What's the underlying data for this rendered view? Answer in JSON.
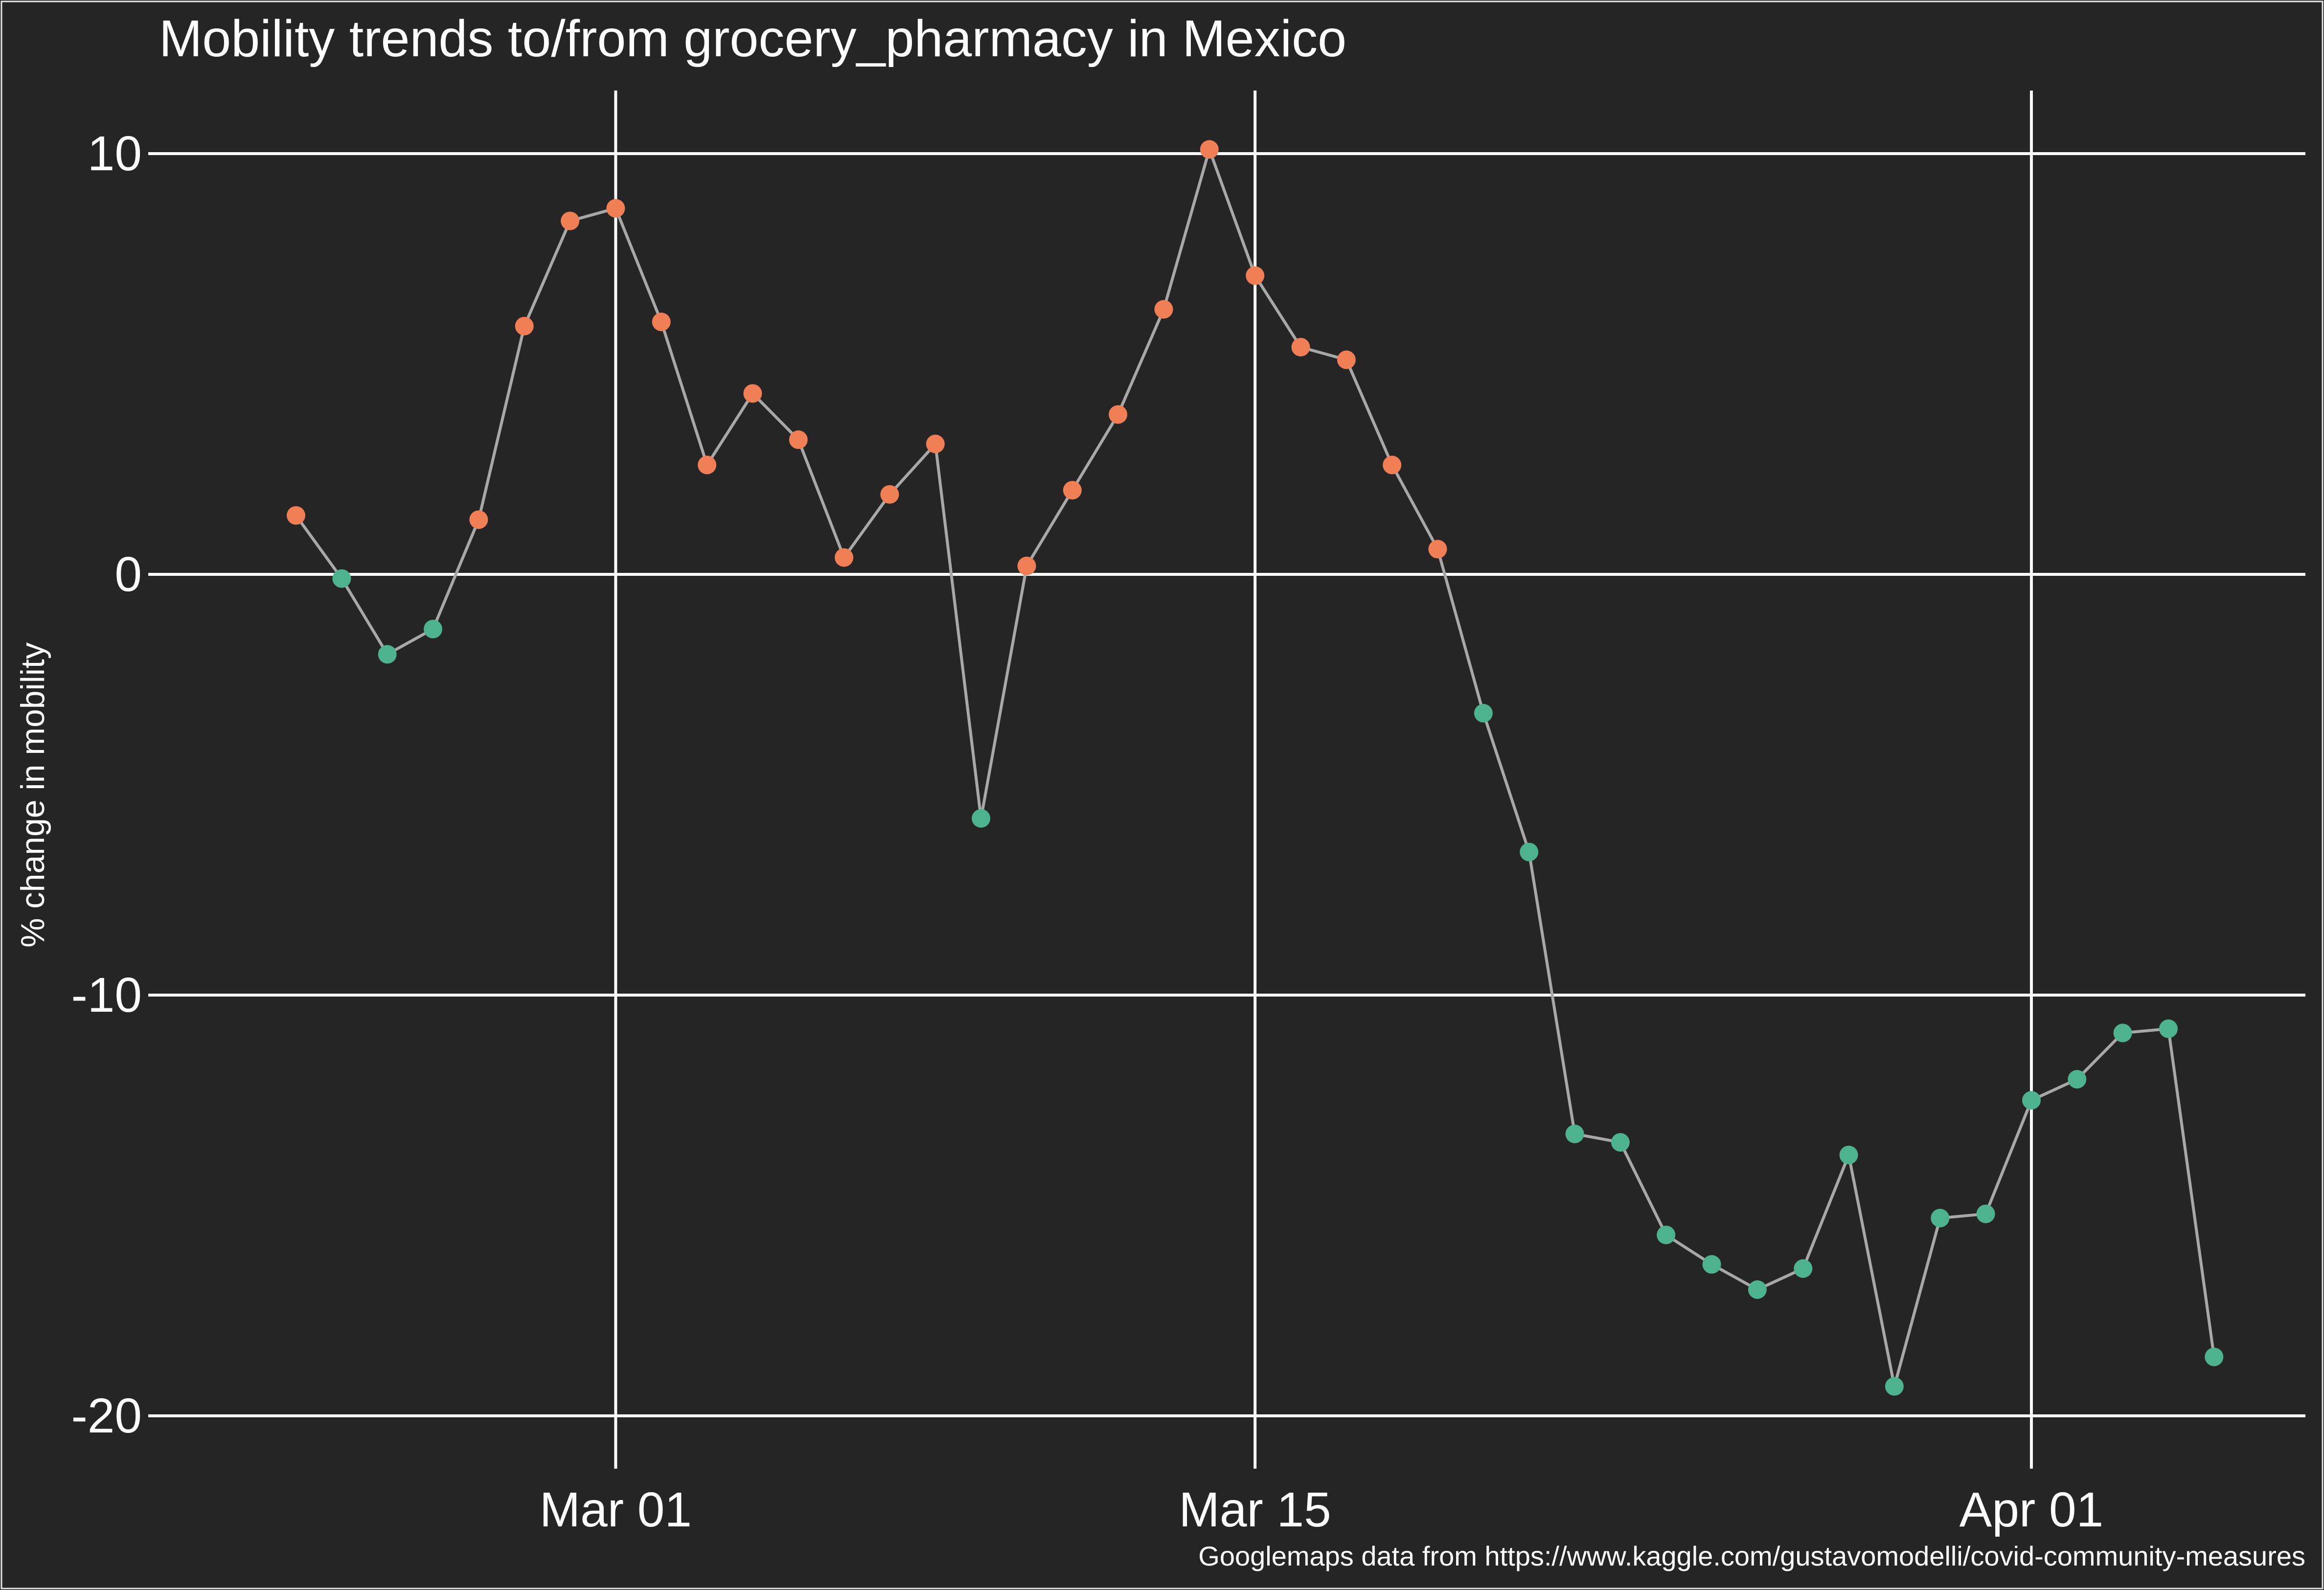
{
  "chart_data": {
    "type": "scatter",
    "title": "Mobility trends to/from grocery_pharmacy in Mexico",
    "xlabel": "",
    "ylabel": "% change in mobility",
    "caption": "Googlemaps data from https://www.kaggle.com/gustavomodelli/covid-community-measures",
    "x_ticks": [
      {
        "label": "Mar 01",
        "date": "2020-03-01"
      },
      {
        "label": "Mar 15",
        "date": "2020-03-15"
      },
      {
        "label": "Apr 01",
        "date": "2020-04-01"
      }
    ],
    "y_ticks": [
      10,
      0,
      -10,
      -20
    ],
    "xlim": [
      "2020-02-20",
      "2020-04-07"
    ],
    "ylim": [
      -21,
      11.5
    ],
    "grid": true,
    "legend": "none",
    "colors": {
      "background": "#252525",
      "positive": "#F07F56",
      "negative": "#4DB38E",
      "line": "#A8A8A8",
      "grid": "#FFFFFF"
    },
    "series": [
      {
        "points": [
          {
            "x": "2020-02-23",
            "y": 1.4
          },
          {
            "x": "2020-02-24",
            "y": -0.1
          },
          {
            "x": "2020-02-25",
            "y": -1.9
          },
          {
            "x": "2020-02-26",
            "y": -1.3
          },
          {
            "x": "2020-02-27",
            "y": 1.3
          },
          {
            "x": "2020-02-28",
            "y": 5.9
          },
          {
            "x": "2020-02-29",
            "y": 8.4
          },
          {
            "x": "2020-03-01",
            "y": 8.7
          },
          {
            "x": "2020-03-02",
            "y": 6.0
          },
          {
            "x": "2020-03-03",
            "y": 2.6
          },
          {
            "x": "2020-03-04",
            "y": 4.3
          },
          {
            "x": "2020-03-05",
            "y": 3.2
          },
          {
            "x": "2020-03-06",
            "y": 0.4
          },
          {
            "x": "2020-03-07",
            "y": 1.9
          },
          {
            "x": "2020-03-08",
            "y": 3.1
          },
          {
            "x": "2020-03-09",
            "y": -5.8
          },
          {
            "x": "2020-03-10",
            "y": 0.2
          },
          {
            "x": "2020-03-11",
            "y": 2.0
          },
          {
            "x": "2020-03-12",
            "y": 3.8
          },
          {
            "x": "2020-03-13",
            "y": 6.3
          },
          {
            "x": "2020-03-14",
            "y": 10.1
          },
          {
            "x": "2020-03-15",
            "y": 7.1
          },
          {
            "x": "2020-03-16",
            "y": 5.4
          },
          {
            "x": "2020-03-17",
            "y": 5.1
          },
          {
            "x": "2020-03-18",
            "y": 2.6
          },
          {
            "x": "2020-03-19",
            "y": 0.6
          },
          {
            "x": "2020-03-20",
            "y": -3.3
          },
          {
            "x": "2020-03-21",
            "y": -6.6
          },
          {
            "x": "2020-03-22",
            "y": -13.3
          },
          {
            "x": "2020-03-23",
            "y": -13.5
          },
          {
            "x": "2020-03-24",
            "y": -15.7
          },
          {
            "x": "2020-03-25",
            "y": -16.4
          },
          {
            "x": "2020-03-26",
            "y": -17.0
          },
          {
            "x": "2020-03-27",
            "y": -16.5
          },
          {
            "x": "2020-03-28",
            "y": -13.8
          },
          {
            "x": "2020-03-29",
            "y": -19.3
          },
          {
            "x": "2020-03-30",
            "y": -15.3
          },
          {
            "x": "2020-03-31",
            "y": -15.2
          },
          {
            "x": "2020-04-01",
            "y": -12.5
          },
          {
            "x": "2020-04-02",
            "y": -12.0
          },
          {
            "x": "2020-04-03",
            "y": -10.9
          },
          {
            "x": "2020-04-04",
            "y": -10.8
          },
          {
            "x": "2020-04-05",
            "y": -18.6
          }
        ]
      }
    ]
  }
}
